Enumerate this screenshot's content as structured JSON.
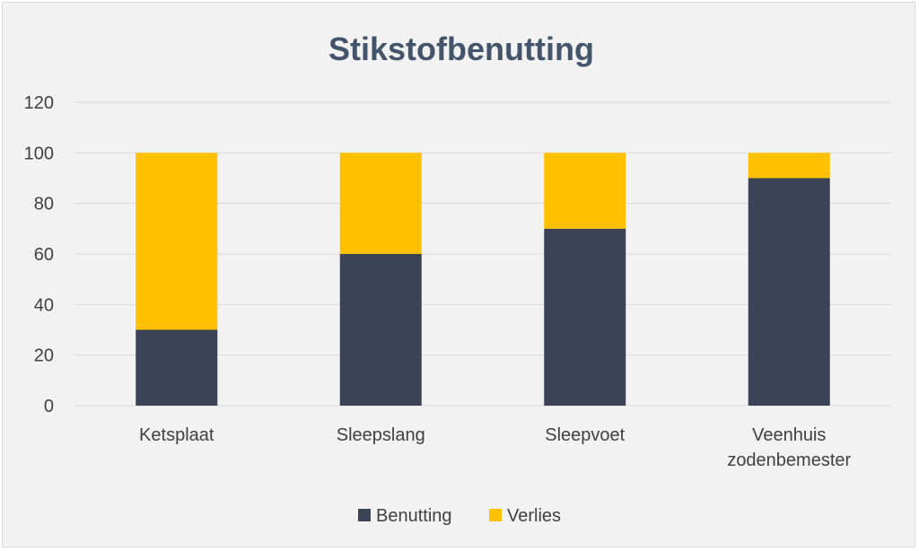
{
  "chart_data": {
    "type": "bar",
    "stacked": true,
    "title": "Stikstofbenutting",
    "categories": [
      [
        "Ketsplaat"
      ],
      [
        "Sleepslang"
      ],
      [
        "Sleepvoet"
      ],
      [
        "Veenhuis",
        "zodenbemester"
      ]
    ],
    "series": [
      {
        "name": "Benutting",
        "values": [
          30,
          60,
          70,
          90
        ],
        "color": "#3b4457"
      },
      {
        "name": "Verlies",
        "values": [
          70,
          40,
          30,
          10
        ],
        "color": "#ffc000"
      }
    ],
    "ylim": [
      0,
      120
    ],
    "yticks": [
      0,
      20,
      40,
      60,
      80,
      100,
      120
    ],
    "grid": true,
    "legend_position": "bottom"
  }
}
